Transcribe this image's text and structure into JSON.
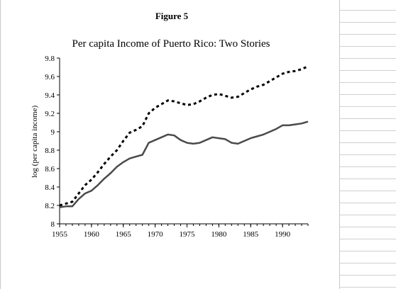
{
  "figure_label": "Figure 5",
  "chart_data": {
    "type": "line",
    "title": "Per capita Income of Puerto Rico: Two Stories",
    "xlabel": "",
    "ylabel": "log (per capita income)",
    "xlim": [
      1955,
      1994
    ],
    "ylim": [
      8,
      9.8
    ],
    "x_ticks": [
      "1955",
      "1960",
      "1965",
      "1970",
      "1975",
      "1980",
      "1985",
      "1990"
    ],
    "y_ticks": [
      "8",
      "8.2",
      "8.4",
      "8.6",
      "8.8",
      "9",
      "9.2",
      "9.4",
      "9.6",
      "9.8"
    ],
    "x": [
      1955,
      1956,
      1957,
      1958,
      1959,
      1960,
      1961,
      1962,
      1963,
      1964,
      1965,
      1966,
      1967,
      1968,
      1969,
      1970,
      1971,
      1972,
      1973,
      1974,
      1975,
      1976,
      1977,
      1978,
      1979,
      1980,
      1981,
      1982,
      1983,
      1984,
      1985,
      1986,
      1987,
      1988,
      1989,
      1990,
      1991,
      1992,
      1993,
      1994
    ],
    "series": [
      {
        "style": "dotted",
        "color": "#000000",
        "values": [
          8.2,
          8.22,
          8.24,
          8.33,
          8.42,
          8.48,
          8.56,
          8.65,
          8.73,
          8.8,
          8.9,
          8.99,
          9.02,
          9.06,
          9.2,
          9.26,
          9.3,
          9.34,
          9.33,
          9.31,
          9.29,
          9.3,
          9.33,
          9.37,
          9.4,
          9.41,
          9.39,
          9.37,
          9.38,
          9.42,
          9.46,
          9.49,
          9.51,
          9.55,
          9.59,
          9.63,
          9.65,
          9.66,
          9.68,
          9.71
        ]
      },
      {
        "style": "solid",
        "color": "#4a4a4a",
        "values": [
          8.18,
          8.19,
          8.19,
          8.27,
          8.33,
          8.36,
          8.42,
          8.49,
          8.55,
          8.62,
          8.67,
          8.71,
          8.73,
          8.75,
          8.88,
          8.91,
          8.94,
          8.97,
          8.96,
          8.91,
          8.88,
          8.87,
          8.88,
          8.91,
          8.94,
          8.93,
          8.92,
          8.88,
          8.87,
          8.9,
          8.93,
          8.95,
          8.97,
          9.0,
          9.03,
          9.07,
          9.07,
          9.08,
          9.09,
          9.11
        ]
      }
    ],
    "grid": false,
    "legend": "none"
  }
}
